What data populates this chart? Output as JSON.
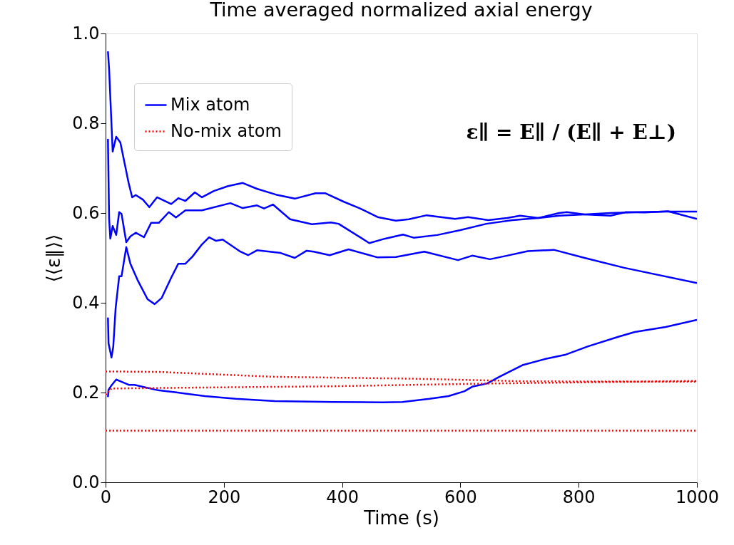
{
  "chart_data": {
    "type": "line",
    "title": "Time averaged normalized axial energy",
    "xlabel": "Time (s)",
    "ylabel": "⟨⟨ε∥⟩⟩",
    "xlim": [
      0,
      1000
    ],
    "xticks": [
      0,
      200,
      400,
      600,
      800,
      1000
    ],
    "ylim": [
      0,
      1
    ],
    "yticks": [
      {
        "value": 0,
        "label": "0.0"
      },
      {
        "value": 0.2,
        "label": "0.2"
      },
      {
        "value": 0.4,
        "label": "0.4"
      },
      {
        "value": 0.6,
        "label": "0.6"
      },
      {
        "value": 0.8,
        "label": "0.8"
      },
      {
        "value": 1,
        "label": "1.0"
      }
    ],
    "grid": false,
    "legend": "top left",
    "annotations": [
      "ε∥ = E∥ / (E∥ + E⊥)"
    ],
    "series": [
      {
        "name": "Mix atom",
        "color": "#0000ff",
        "line_style": "solid",
        "x": [
          4,
          6,
          12,
          18,
          25,
          39,
          45,
          51,
          63,
          74,
          87,
          111,
          123,
          135,
          151,
          163,
          183,
          207,
          232,
          256,
          288,
          320,
          355,
          372,
          403,
          429,
          460,
          491,
          513,
          543,
          591,
          613,
          647,
          679,
          701,
          732,
          767,
          780,
          810,
          854,
          880,
          912,
          951,
          1000
        ],
        "values": [
          0.96,
          0.92,
          0.737,
          0.77,
          0.757,
          0.667,
          0.635,
          0.64,
          0.63,
          0.613,
          0.635,
          0.62,
          0.633,
          0.627,
          0.646,
          0.635,
          0.649,
          0.66,
          0.667,
          0.654,
          0.641,
          0.632,
          0.644,
          0.644,
          0.625,
          0.611,
          0.591,
          0.583,
          0.586,
          0.595,
          0.587,
          0.591,
          0.584,
          0.589,
          0.594,
          0.589,
          0.6,
          0.602,
          0.597,
          0.594,
          0.602,
          0.601,
          0.604,
          0.587
        ]
      },
      {
        "color": "#0000ff",
        "line_style": "solid",
        "x": [
          4,
          6,
          8,
          12,
          18,
          23,
          27,
          35,
          42,
          51,
          65,
          77,
          90,
          107,
          119,
          135,
          163,
          211,
          232,
          256,
          268,
          283,
          312,
          349,
          381,
          394,
          446,
          473,
          503,
          521,
          561,
          600,
          644,
          688,
          732,
          767,
          810,
          854,
          899,
          951,
          1000
        ],
        "values": [
          0.765,
          0.587,
          0.543,
          0.571,
          0.551,
          0.602,
          0.598,
          0.535,
          0.548,
          0.556,
          0.546,
          0.578,
          0.578,
          0.602,
          0.59,
          0.606,
          0.606,
          0.622,
          0.611,
          0.617,
          0.61,
          0.619,
          0.586,
          0.575,
          0.579,
          0.576,
          0.533,
          0.543,
          0.552,
          0.545,
          0.551,
          0.562,
          0.576,
          0.584,
          0.589,
          0.594,
          0.597,
          0.6,
          0.602,
          0.603,
          0.603
        ]
      },
      {
        "color": "#0000ff",
        "line_style": "solid",
        "x": [
          4,
          5,
          10,
          13,
          17,
          23,
          27,
          35,
          42,
          54,
          71,
          83,
          95,
          111,
          123,
          135,
          147,
          163,
          175,
          187,
          198,
          228,
          241,
          256,
          296,
          320,
          340,
          352,
          379,
          411,
          460,
          491,
          539,
          596,
          620,
          650,
          679,
          714,
          758,
          810,
          877,
          1000
        ],
        "values": [
          0.367,
          0.31,
          0.278,
          0.302,
          0.388,
          0.459,
          0.459,
          0.524,
          0.487,
          0.451,
          0.408,
          0.397,
          0.411,
          0.456,
          0.487,
          0.487,
          0.503,
          0.53,
          0.546,
          0.538,
          0.541,
          0.514,
          0.506,
          0.517,
          0.511,
          0.5,
          0.516,
          0.514,
          0.506,
          0.519,
          0.501,
          0.502,
          0.514,
          0.495,
          0.505,
          0.497,
          0.505,
          0.515,
          0.518,
          0.5,
          0.478,
          0.444
        ]
      },
      {
        "color": "#0000ff",
        "line_style": "solid",
        "x": [
          4,
          5,
          10,
          18,
          27,
          40,
          49,
          89,
          122,
          168,
          220,
          286,
          384,
          469,
          502,
          548,
          580,
          607,
          620,
          645,
          666,
          705,
          744,
          777,
          816,
          869,
          895,
          947,
          1000
        ],
        "values": [
          0.19,
          0.206,
          0.216,
          0.229,
          0.224,
          0.217,
          0.217,
          0.205,
          0.2,
          0.192,
          0.186,
          0.181,
          0.179,
          0.178,
          0.179,
          0.186,
          0.192,
          0.203,
          0.213,
          0.22,
          0.235,
          0.261,
          0.275,
          0.284,
          0.303,
          0.325,
          0.335,
          0.346,
          0.362
        ]
      },
      {
        "name": "No-mix atom",
        "color": "#ff0000",
        "line_style": "dotted",
        "x": [
          0,
          89,
          286,
          515,
          712,
          1000
        ],
        "values": [
          0.247,
          0.246,
          0.235,
          0.231,
          0.225,
          0.224
        ]
      },
      {
        "color": "#ff0000",
        "line_style": "dotted",
        "x": [
          0,
          10,
          154,
          384,
          645,
          1000
        ],
        "values": [
          0.195,
          0.209,
          0.211,
          0.214,
          0.22,
          0.226
        ]
      },
      {
        "color": "#ff0000",
        "line_style": "dotted",
        "x": [
          0,
          1000
        ],
        "values": [
          0.115,
          0.115
        ]
      }
    ]
  }
}
